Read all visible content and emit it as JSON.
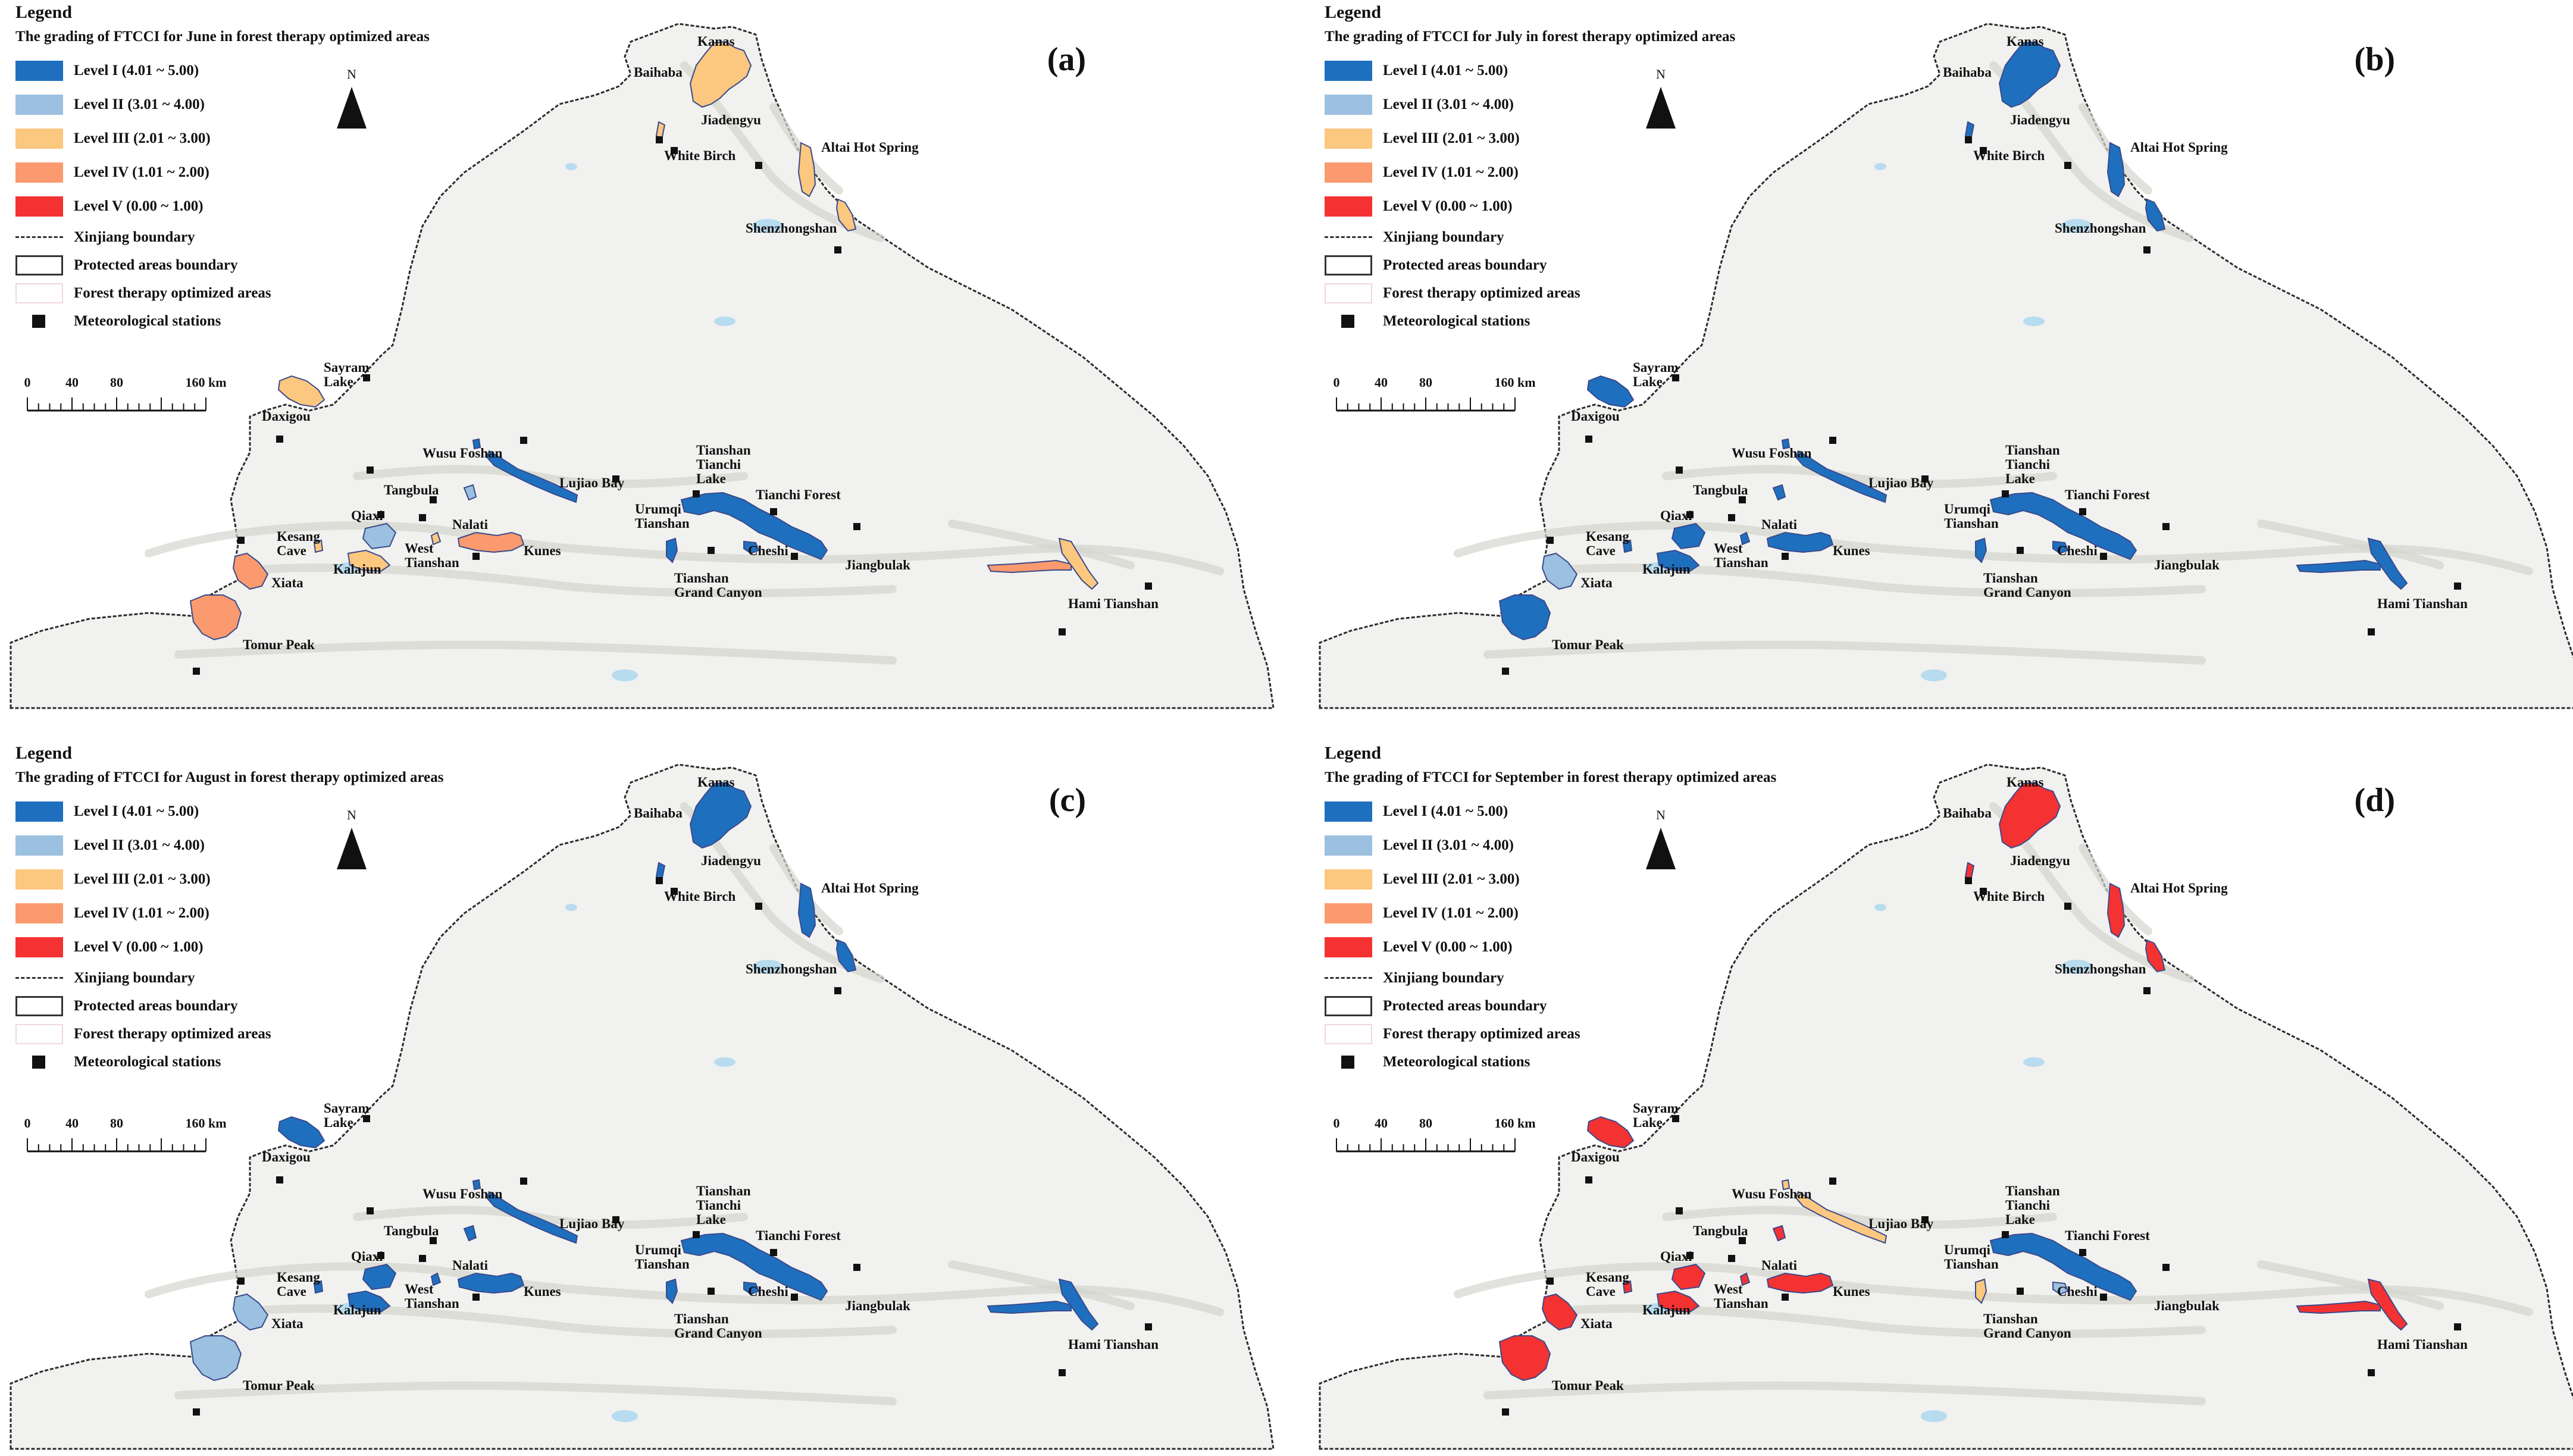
{
  "legend": {
    "title": "Legend",
    "levels": [
      {
        "label": "Level I (4.01 ~ 5.00)",
        "color": "#1f6fbf"
      },
      {
        "label": "Level II (3.01 ~ 4.00)",
        "color": "#9cc0e0"
      },
      {
        "label": "Level III (2.01 ~ 3.00)",
        "color": "#fcc77f"
      },
      {
        "label": "Level IV (1.01 ~ 2.00)",
        "color": "#fa9a6e"
      },
      {
        "label": "Level V (0.00 ~ 1.00)",
        "color": "#f43232"
      }
    ],
    "xinjiang_boundary": "Xinjiang boundary",
    "protected_boundary": "Protected areas boundary",
    "forest_areas": "Forest therapy optimized areas",
    "met_stations": "Meteorological stations"
  },
  "north": "N",
  "scale": {
    "ticks": [
      "0",
      "40",
      "80",
      "160 km"
    ]
  },
  "places": [
    {
      "key": "kanas",
      "text": "Kanas"
    },
    {
      "key": "baihaba",
      "text": "Baihaba"
    },
    {
      "key": "jiadengyu",
      "text": "Jiadengyu"
    },
    {
      "key": "white_birch",
      "text": "White Birch"
    },
    {
      "key": "altai",
      "text": "Altai Hot Spring"
    },
    {
      "key": "shenzhongshan",
      "text": "Shenzhongshan"
    },
    {
      "key": "sayram",
      "text": "Sayram\nLake"
    },
    {
      "key": "daxigou",
      "text": "Daxigou"
    },
    {
      "key": "wusu",
      "text": "Wusu Foshan"
    },
    {
      "key": "lujiao",
      "text": "Lujiao Bay"
    },
    {
      "key": "tianchi_lake",
      "text": "Tianshan\nTianchi\nLake"
    },
    {
      "key": "tianchi_forest",
      "text": "Tianchi Forest"
    },
    {
      "key": "tangbula",
      "text": "Tangbula"
    },
    {
      "key": "qiaxi",
      "text": "Qiaxi"
    },
    {
      "key": "nalati",
      "text": "Nalati"
    },
    {
      "key": "urumqi",
      "text": "Urumqi\nTianshan"
    },
    {
      "key": "kesang",
      "text": "Kesang\nCave"
    },
    {
      "key": "west_tianshan",
      "text": "West\nTianshan"
    },
    {
      "key": "kunes",
      "text": "Kunes"
    },
    {
      "key": "cheshi",
      "text": "Cheshi"
    },
    {
      "key": "jiangbulak",
      "text": "Jiangbulak"
    },
    {
      "key": "kalajun",
      "text": "Kalajun"
    },
    {
      "key": "grand_canyon",
      "text": "Tianshan\nGrand Canyon"
    },
    {
      "key": "xiata",
      "text": "Xiata"
    },
    {
      "key": "hami",
      "text": "Hami Tianshan"
    },
    {
      "key": "tomur",
      "text": "Tomur Peak"
    }
  ],
  "panels": [
    {
      "id": "a",
      "label": "(a)",
      "subtitle": "The grading of FTCCI for June in forest therapy optimized areas",
      "levels": {
        "kanas": 3,
        "altai": 3,
        "shenzhongshan": 3,
        "white_birch": 3,
        "daxigou": 3,
        "wusu": 1,
        "lujiao": 1,
        "tianchi": 1,
        "cheshi": 1,
        "urumqi": 1,
        "tangbula": 2,
        "qiaxi": 2,
        "nalati": 3,
        "kunes": 4,
        "kalajun": 3,
        "kesang": 3,
        "xiata": 4,
        "tomur": 4,
        "hami_main": 4,
        "hami_east": 3
      }
    },
    {
      "id": "b",
      "label": "(b)",
      "subtitle": "The grading of FTCCI for July in forest therapy optimized areas",
      "levels": {
        "kanas": 1,
        "altai": 1,
        "shenzhongshan": 1,
        "white_birch": 1,
        "daxigou": 1,
        "wusu": 1,
        "lujiao": 1,
        "tianchi": 1,
        "cheshi": 1,
        "urumqi": 1,
        "tangbula": 1,
        "qiaxi": 1,
        "nalati": 1,
        "kunes": 1,
        "kalajun": 1,
        "kesang": 1,
        "xiata": 2,
        "tomur": 1,
        "hami_main": 1,
        "hami_east": 1
      }
    },
    {
      "id": "c",
      "label": "(c)",
      "subtitle": "The grading of FTCCI for August in forest therapy optimized areas",
      "levels": {
        "kanas": 1,
        "altai": 1,
        "shenzhongshan": 1,
        "white_birch": 1,
        "daxigou": 1,
        "wusu": 1,
        "lujiao": 1,
        "tianchi": 1,
        "cheshi": 1,
        "urumqi": 1,
        "tangbula": 1,
        "qiaxi": 1,
        "nalati": 1,
        "kunes": 1,
        "kalajun": 1,
        "kesang": 1,
        "xiata": 2,
        "tomur": 2,
        "hami_main": 1,
        "hami_east": 1
      }
    },
    {
      "id": "d",
      "label": "(d)",
      "subtitle": "The grading of FTCCI for September in forest therapy optimized areas",
      "levels": {
        "kanas": 5,
        "altai": 5,
        "shenzhongshan": 5,
        "white_birch": 5,
        "daxigou": 5,
        "wusu": 3,
        "lujiao": 3,
        "tianchi": 1,
        "cheshi": 2,
        "urumqi": 3,
        "tangbula": 5,
        "qiaxi": 5,
        "nalati": 5,
        "kunes": 5,
        "kalajun": 5,
        "kesang": 5,
        "xiata": 5,
        "tomur": 5,
        "hami_main": 5,
        "hami_east": 5
      }
    }
  ]
}
